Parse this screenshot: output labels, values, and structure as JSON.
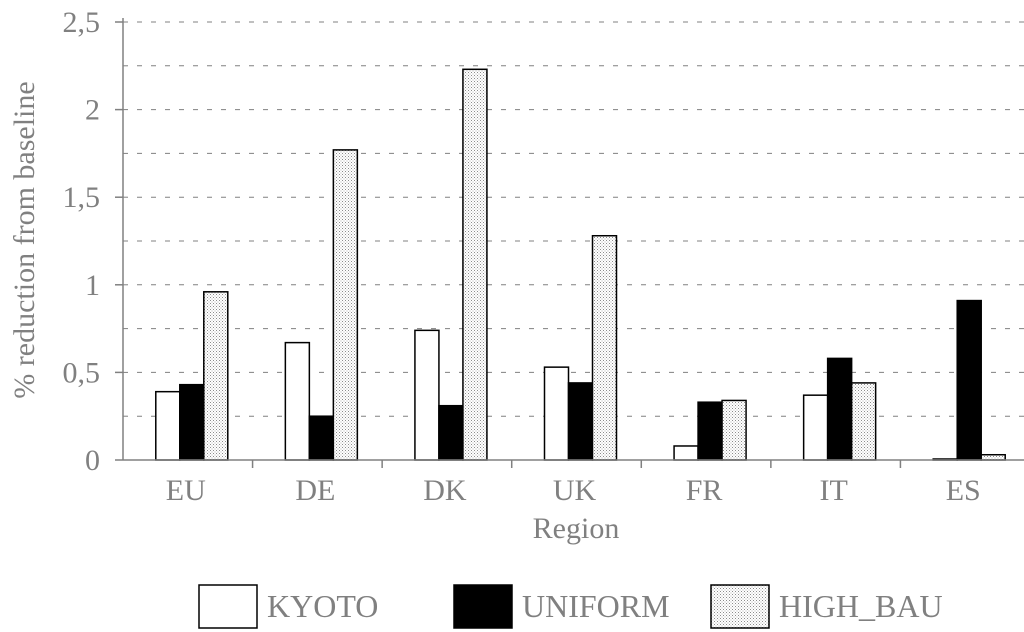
{
  "chart_data": {
    "type": "bar",
    "title": "",
    "xlabel": "Region",
    "ylabel": "% reduction from baseline",
    "categories": [
      "EU",
      "DE",
      "DK",
      "UK",
      "FR",
      "IT",
      "ES"
    ],
    "series": [
      {
        "name": "KYOTO",
        "values": [
          0.39,
          0.67,
          0.74,
          0.53,
          0.08,
          0.37,
          0.0
        ],
        "fill": "#ffffff"
      },
      {
        "name": "UNIFORM",
        "values": [
          0.43,
          0.25,
          0.31,
          0.44,
          0.33,
          0.58,
          0.91
        ],
        "fill": "#000000"
      },
      {
        "name": "HIGH_BAU",
        "values": [
          0.96,
          1.77,
          2.23,
          1.28,
          0.34,
          0.44,
          0.03
        ],
        "fill": "dotted-gray"
      }
    ],
    "ylim": [
      0,
      2.5
    ],
    "yticks": [
      0,
      0.5,
      1,
      1.5,
      2,
      2.5
    ],
    "ytick_labels": [
      "0",
      "0,5",
      "1",
      "1,5",
      "2",
      "2,5"
    ],
    "grid": true,
    "legend_position": "bottom"
  },
  "colors": {
    "axis": "#808080",
    "grid": "#808080",
    "bar_stroke": "#000000",
    "pattern_dot": "#999999"
  }
}
